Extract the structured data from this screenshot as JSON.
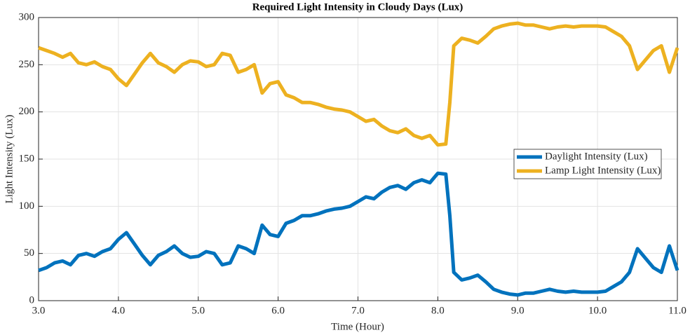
{
  "chart_data": {
    "type": "line",
    "title": "Required Light Intensity in Cloudy Days (Lux)",
    "x_label": "Time (Hour)",
    "y_label": "Light Intensity (Lux)",
    "x": [
      3.0,
      3.1,
      3.2,
      3.3,
      3.4,
      3.5,
      3.6,
      3.7,
      3.8,
      3.9,
      4.0,
      4.1,
      4.2,
      4.3,
      4.4,
      4.5,
      4.6,
      4.7,
      4.8,
      4.9,
      5.0,
      5.1,
      5.2,
      5.3,
      5.4,
      5.5,
      5.6,
      5.7,
      5.8,
      5.9,
      6.0,
      6.1,
      6.2,
      6.3,
      6.4,
      6.5,
      6.6,
      6.7,
      6.8,
      6.9,
      7.0,
      7.1,
      7.2,
      7.3,
      7.4,
      7.5,
      7.6,
      7.7,
      7.8,
      7.9,
      8.0,
      8.1,
      8.15,
      8.2,
      8.3,
      8.4,
      8.5,
      8.6,
      8.7,
      8.8,
      8.9,
      9.0,
      9.1,
      9.2,
      9.3,
      9.4,
      9.5,
      9.6,
      9.7,
      9.8,
      9.9,
      10.0,
      10.1,
      10.2,
      10.3,
      10.4,
      10.5,
      10.6,
      10.7,
      10.8,
      10.9,
      11.0
    ],
    "series": [
      {
        "name": "Daylight Intensity (Lux)",
        "color": "#0072bd",
        "values": [
          32,
          35,
          40,
          42,
          38,
          48,
          50,
          47,
          52,
          55,
          65,
          72,
          60,
          48,
          38,
          48,
          52,
          58,
          50,
          46,
          47,
          52,
          50,
          38,
          40,
          58,
          55,
          50,
          80,
          70,
          68,
          82,
          85,
          90,
          90,
          92,
          95,
          97,
          98,
          100,
          105,
          110,
          108,
          115,
          120,
          122,
          118,
          125,
          128,
          125,
          135,
          134,
          90,
          30,
          22,
          24,
          27,
          20,
          12,
          9,
          7,
          6,
          8,
          8,
          10,
          12,
          10,
          9,
          10,
          9,
          9,
          9,
          10,
          15,
          20,
          30,
          55,
          45,
          35,
          30,
          58,
          32
        ]
      },
      {
        "name": "Lamp Light Intensity (Lux)",
        "color": "#edb120",
        "values": [
          268,
          265,
          262,
          258,
          262,
          252,
          250,
          253,
          248,
          245,
          235,
          228,
          240,
          252,
          262,
          252,
          248,
          242,
          250,
          254,
          253,
          248,
          250,
          262,
          260,
          242,
          245,
          250,
          220,
          230,
          232,
          218,
          215,
          210,
          210,
          208,
          205,
          203,
          202,
          200,
          195,
          190,
          192,
          185,
          180,
          178,
          182,
          175,
          172,
          175,
          165,
          166,
          210,
          270,
          278,
          276,
          273,
          280,
          288,
          291,
          293,
          294,
          292,
          292,
          290,
          288,
          290,
          291,
          290,
          291,
          291,
          291,
          290,
          285,
          280,
          270,
          245,
          255,
          265,
          270,
          242,
          268
        ]
      }
    ],
    "xlim": [
      3,
      11
    ],
    "xticks": [
      {
        "value": 3,
        "label": "3.0"
      },
      {
        "value": 4,
        "label": "4.0"
      },
      {
        "value": 5,
        "label": "5.0"
      },
      {
        "value": 6,
        "label": "6.0"
      },
      {
        "value": 7,
        "label": "7.0"
      },
      {
        "value": 8,
        "label": "8.0"
      },
      {
        "value": 9,
        "label": "9.0"
      },
      {
        "value": 10,
        "label": "10.0"
      },
      {
        "value": 11,
        "label": "11.0"
      }
    ],
    "ylim": [
      0,
      300
    ],
    "yticks": [
      0,
      50,
      100,
      150,
      200,
      250,
      300
    ],
    "grid": true,
    "legend": "right"
  }
}
